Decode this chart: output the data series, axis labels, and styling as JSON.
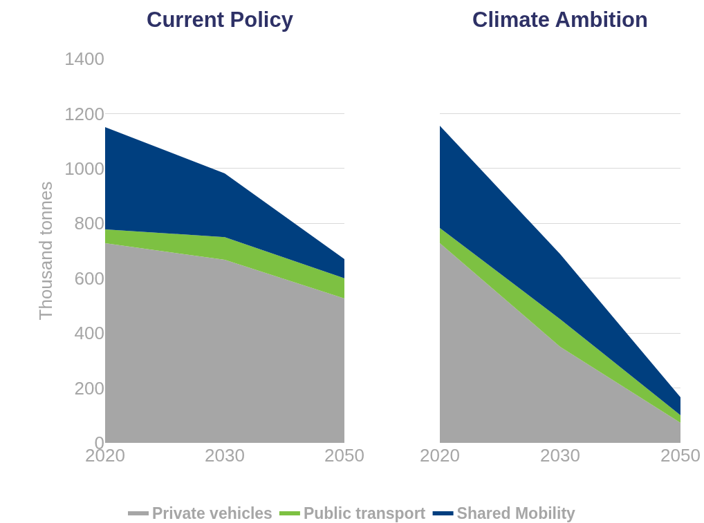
{
  "chart_data": [
    {
      "type": "area",
      "title": "Current Policy",
      "ylabel": "Thousand tonnes",
      "categories": [
        "2020",
        "2030",
        "2050"
      ],
      "stacked": true,
      "ylim": [
        0,
        1400
      ],
      "yticks": [
        0,
        200,
        400,
        600,
        800,
        1000,
        1200,
        1400
      ],
      "grid": "y",
      "legend": "bottom",
      "series": [
        {
          "name": "Private vehicles",
          "color": "#a6a6a6",
          "values": [
            728,
            667,
            526
          ]
        },
        {
          "name": "Public transport",
          "color": "#7dc142",
          "values": [
            50,
            83,
            74
          ]
        },
        {
          "name": "Shared Mobility",
          "color": "#003f7f",
          "values": [
            373,
            232,
            70
          ]
        }
      ]
    },
    {
      "type": "area",
      "title": "Climate Ambition",
      "categories": [
        "2020",
        "2030",
        "2050"
      ],
      "stacked": true,
      "ylim": [
        0,
        1400
      ],
      "yticks": [
        0,
        200,
        400,
        600,
        800,
        1000,
        1200,
        1400
      ],
      "grid": "y",
      "tick_labels": "x",
      "series": [
        {
          "color": "#a6a6a6",
          "values": [
            728,
            350,
            73
          ]
        },
        {
          "color": "#7dc142",
          "values": [
            55,
            101,
            28
          ]
        },
        {
          "color": "#003f7f",
          "values": [
            373,
            237,
            65
          ]
        }
      ]
    }
  ]
}
